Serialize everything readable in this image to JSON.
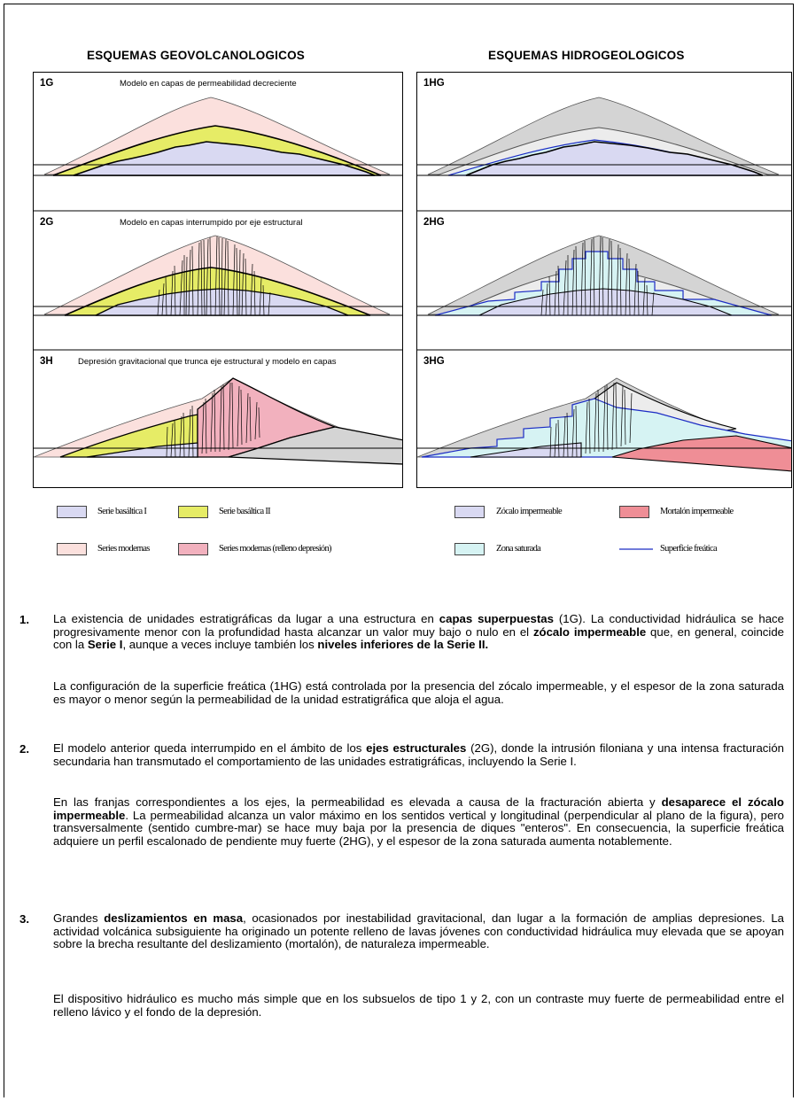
{
  "headers": {
    "left": "ESQUEMAS GEOVOLCANOLOGICOS",
    "right": "ESQUEMAS HIDROGEOLOGICOS"
  },
  "panels": {
    "g1": {
      "tag": "1G",
      "caption": "Modelo en capas de permeabilidad decreciente"
    },
    "g2": {
      "tag": "2G",
      "caption": "Modelo en capas interrumpido por eje estructural"
    },
    "g3": {
      "tag": "3H",
      "caption": "Depresión gravitacional que trunca eje estructural y modelo en capas"
    },
    "h1": {
      "tag": "1HG"
    },
    "h2": {
      "tag": "2HG"
    },
    "h3": {
      "tag": "3HG"
    }
  },
  "legend": {
    "serie1": "Serie basáltica I",
    "serie2": "Serie basáltica II",
    "modernas": "Series modernas",
    "modernas_relleno": "Series modernas (relleno depresión)",
    "zocalo": "Zócalo impermeable",
    "mortalon": "Mortalón impermeable",
    "saturada": "Zona saturada",
    "freatica": "Superficie freática"
  },
  "colors": {
    "serie1": "#d9d9f2",
    "serie2": "#e6ec66",
    "modernas": "#fbe0dd",
    "relleno": "#f2b1be",
    "gray": "#d4d4d4",
    "lightgray": "#ececec",
    "saturada": "#d6f3f3",
    "freatica": "#1c2cc4",
    "mortalon": "#ef8e96"
  },
  "text": {
    "n1": "1.",
    "p1a": "La existencia de unidades estratigráficas da lugar a una estructura en ",
    "p1b": "capas superpuestas",
    "p1c": " (1G). La conductividad hidráulica se hace progresivamente menor con la profundidad hasta alcanzar un valor muy bajo o nulo en el ",
    "p1d": "zócalo impermeable",
    "p1e": " que, en general, coincide con la ",
    "p1f": "Serie I",
    "p1g": ", aunque a veces incluye también los ",
    "p1h": "niveles inferiores de la Serie II.",
    "p1i": "La configuración de la superficie freática (1HG) está controlada por la presencia del zócalo impermeable, y el espesor de la zona saturada es mayor o menor según la permeabilidad de la unidad estratigráfica que aloja el agua.",
    "n2": "2.",
    "p2a": "El modelo anterior queda interrumpido en el ámbito de los ",
    "p2b": "ejes estructurales",
    "p2c": " (2G), donde la intrusión filoniana y una intensa fracturación secundaria han transmutado el comportamiento de las unidades estratigráficas, incluyendo la Serie I.",
    "p2d": "En las franjas correspondientes a los ejes, la permeabilidad es elevada a causa de la fracturación abierta y ",
    "p2e": "desaparece el zócalo impermeable",
    "p2f": ". La permeabilidad alcanza un valor máximo en los sentidos vertical y longitudinal (perpendicular al plano de la figura), pero transversalmente (sentido cumbre-mar) se hace muy baja por la presencia de diques \"enteros\". En consecuencia, la superficie freática adquiere un perfil escalonado de pendiente muy fuerte (2HG), y el espesor de la zona saturada aumenta notablemente.",
    "n3": "3.",
    "p3a": "Grandes ",
    "p3b": "deslizamientos en masa",
    "p3c": ", ocasionados por inestabilidad gravitacional, dan lugar a la formación de amplias depresiones. La actividad volcánica subsiguiente ha originado un potente relleno de lavas jóvenes con conductividad hidráulica muy elevada que se apoyan sobre la brecha resultante del deslizamiento (mortalón), de naturaleza impermeable.",
    "p3d": "El dispositivo hidráulico es mucho más simple que en los subsuelos de tipo 1 y 2, con un contraste muy fuerte de permeabilidad entre el relleno lávico y el fondo de la depresión."
  }
}
